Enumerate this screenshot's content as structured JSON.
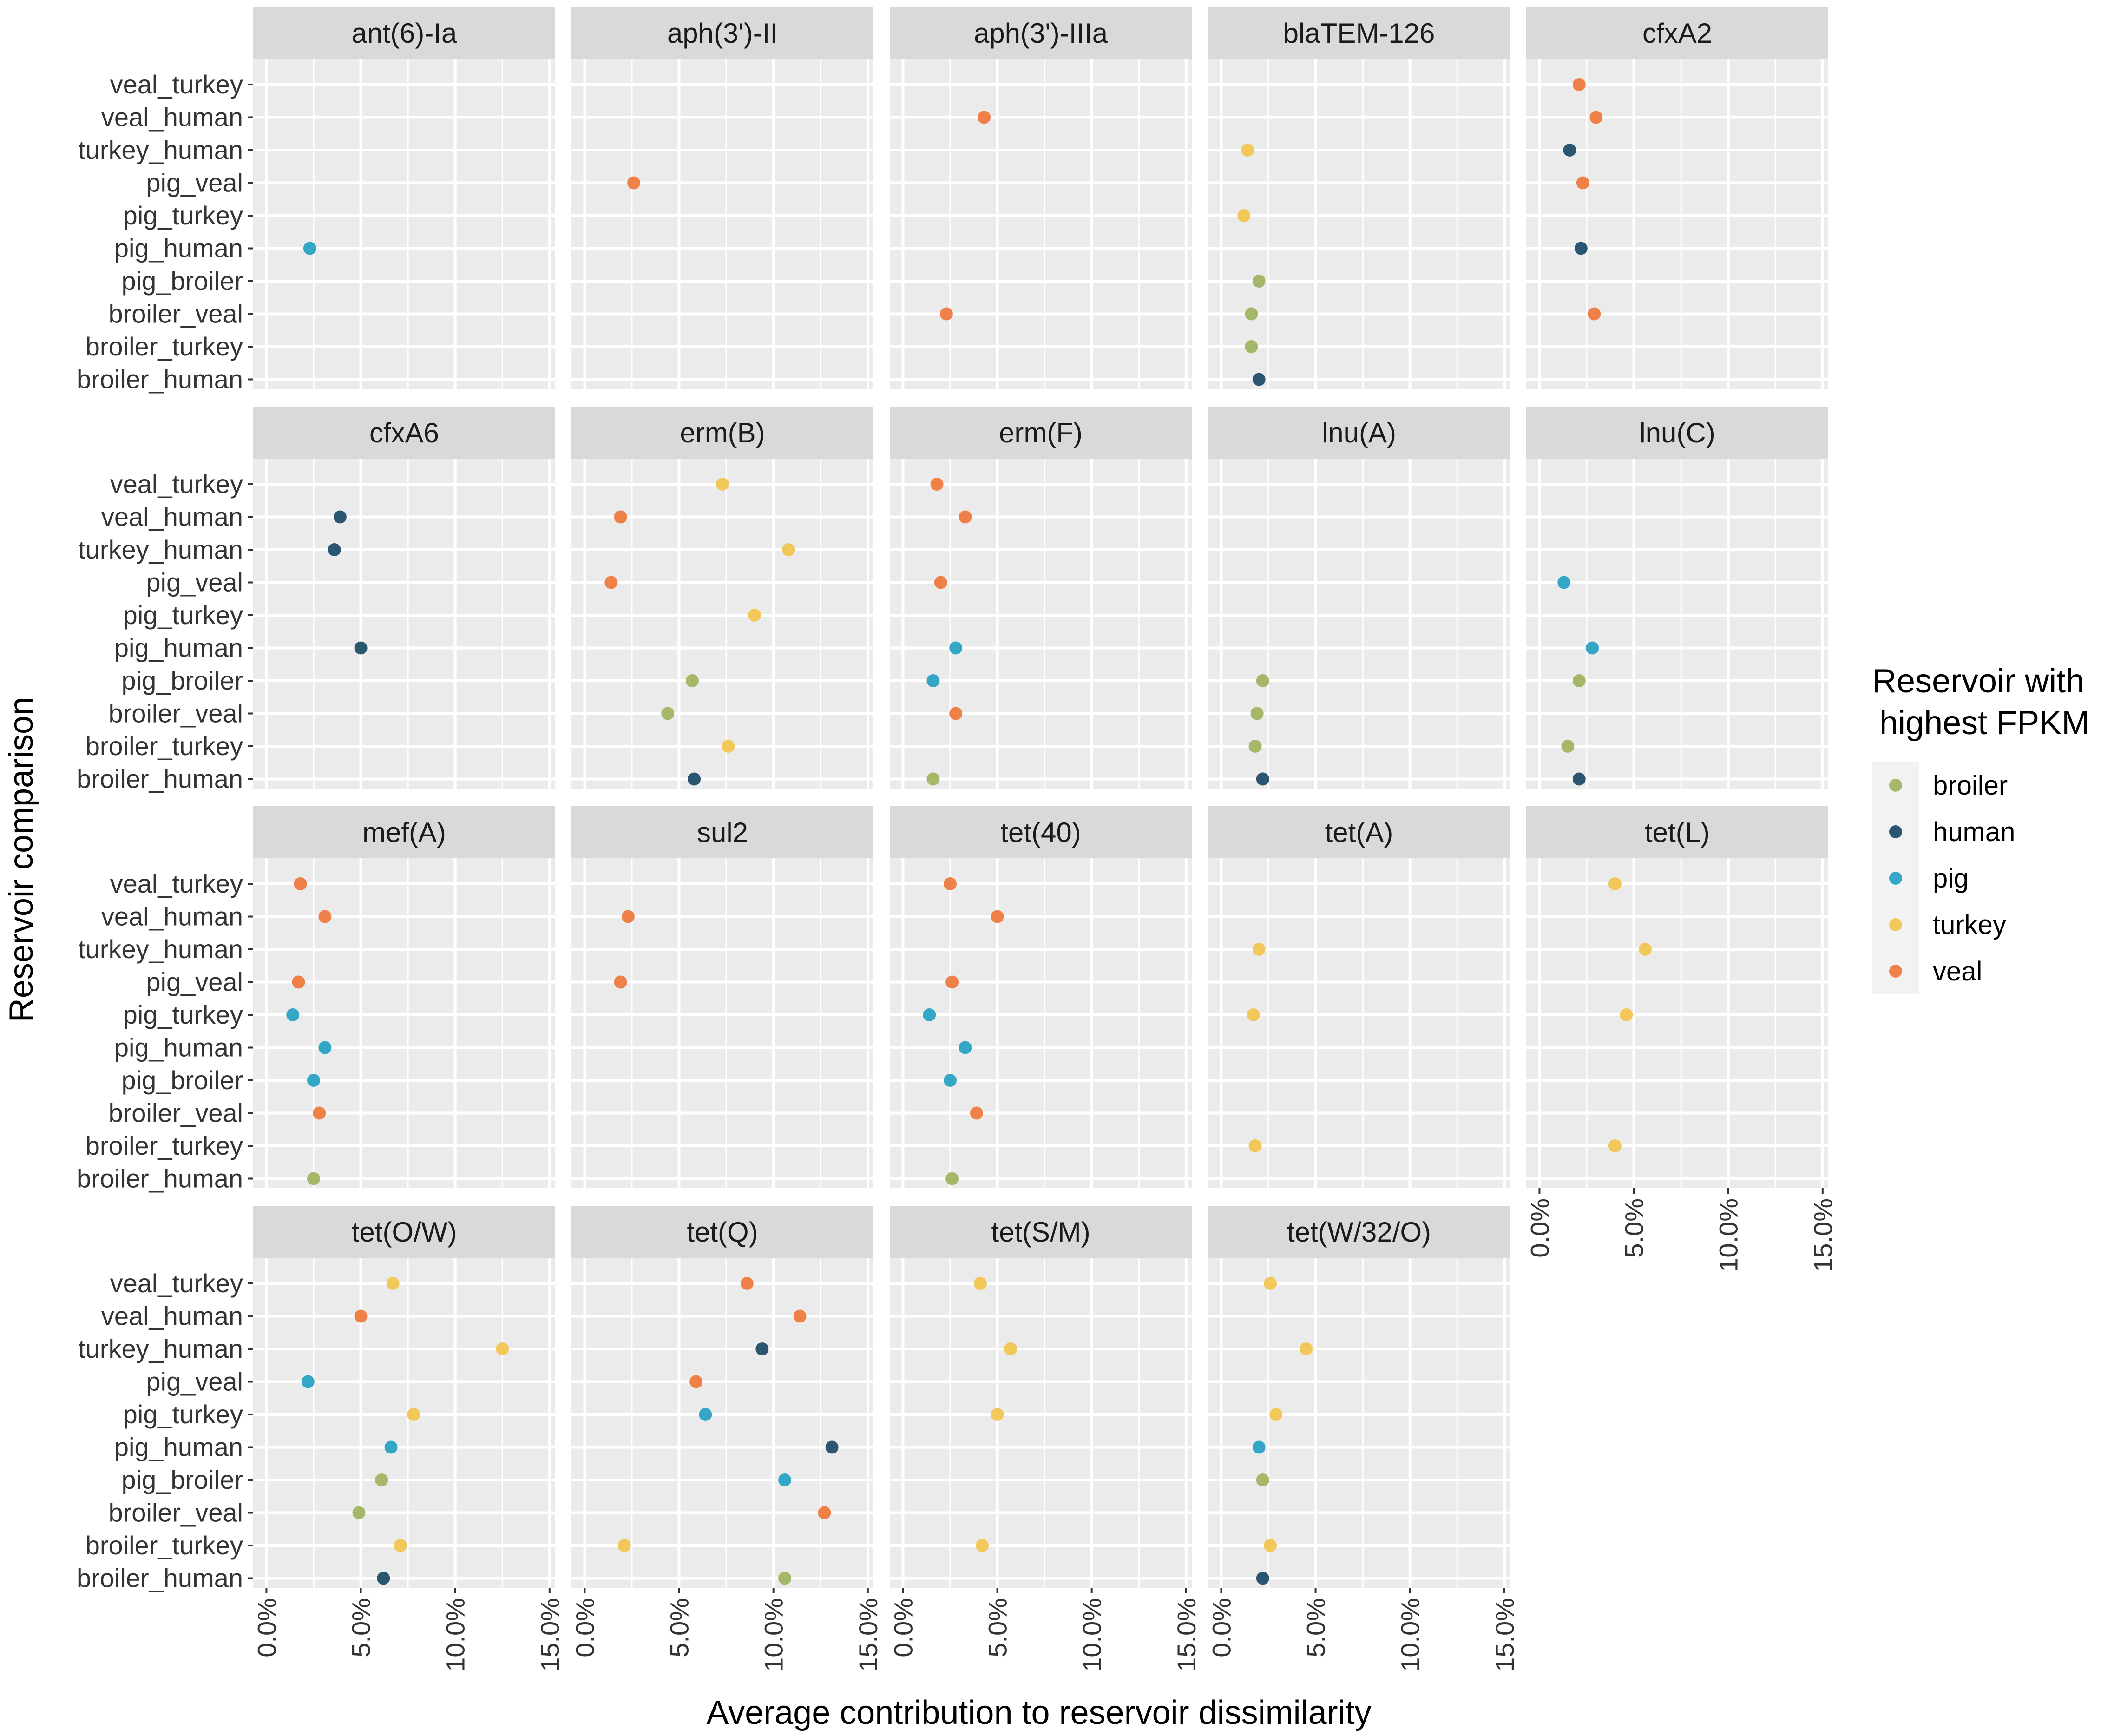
{
  "chart_data": {
    "type": "scatter",
    "xlabel": "Average contribution to reservoir dissimilarity",
    "ylabel": "Reservoir comparison",
    "xlim": [
      -0.7,
      15.3
    ],
    "xticks": [
      0,
      5,
      10,
      15
    ],
    "xtick_labels": [
      "0.0%",
      "5.0%",
      "10.0%",
      "15.0%"
    ],
    "y_categories": [
      "veal_turkey",
      "veal_human",
      "turkey_human",
      "pig_veal",
      "pig_turkey",
      "pig_human",
      "pig_broiler",
      "broiler_veal",
      "broiler_turkey",
      "broiler_human"
    ],
    "legend": {
      "title_line1": "Reservoir with",
      "title_line2": "highest FPKM",
      "entries": [
        {
          "name": "broiler",
          "color": "#a5b768"
        },
        {
          "name": "human",
          "color": "#2b5671"
        },
        {
          "name": "pig",
          "color": "#34a7c6"
        },
        {
          "name": "turkey",
          "color": "#f2c85b"
        },
        {
          "name": "veal",
          "color": "#ef8048"
        }
      ]
    },
    "panels": [
      {
        "title": "ant(6)-Ia",
        "points": [
          {
            "y": "pig_human",
            "x": 2.3,
            "reservoir": "pig"
          }
        ]
      },
      {
        "title": "aph(3')-II",
        "points": [
          {
            "y": "pig_veal",
            "x": 2.6,
            "reservoir": "veal"
          }
        ]
      },
      {
        "title": "aph(3')-IIIa",
        "points": [
          {
            "y": "veal_human",
            "x": 4.3,
            "reservoir": "veal"
          },
          {
            "y": "broiler_veal",
            "x": 2.3,
            "reservoir": "veal"
          }
        ]
      },
      {
        "title": "blaTEM-126",
        "points": [
          {
            "y": "turkey_human",
            "x": 1.4,
            "reservoir": "turkey"
          },
          {
            "y": "pig_turkey",
            "x": 1.2,
            "reservoir": "turkey"
          },
          {
            "y": "pig_broiler",
            "x": 2.0,
            "reservoir": "broiler"
          },
          {
            "y": "broiler_veal",
            "x": 1.6,
            "reservoir": "broiler"
          },
          {
            "y": "broiler_turkey",
            "x": 1.6,
            "reservoir": "broiler"
          },
          {
            "y": "broiler_human",
            "x": 2.0,
            "reservoir": "human"
          }
        ]
      },
      {
        "title": "cfxA2",
        "points": [
          {
            "y": "veal_turkey",
            "x": 2.1,
            "reservoir": "veal"
          },
          {
            "y": "veal_human",
            "x": 3.0,
            "reservoir": "veal"
          },
          {
            "y": "turkey_human",
            "x": 1.6,
            "reservoir": "human"
          },
          {
            "y": "pig_veal",
            "x": 2.3,
            "reservoir": "veal"
          },
          {
            "y": "pig_human",
            "x": 2.2,
            "reservoir": "human"
          },
          {
            "y": "broiler_veal",
            "x": 2.9,
            "reservoir": "veal"
          }
        ]
      },
      {
        "title": "cfxA6",
        "points": [
          {
            "y": "veal_human",
            "x": 3.9,
            "reservoir": "human"
          },
          {
            "y": "turkey_human",
            "x": 3.6,
            "reservoir": "human"
          },
          {
            "y": "pig_human",
            "x": 5.0,
            "reservoir": "human"
          }
        ]
      },
      {
        "title": "erm(B)",
        "points": [
          {
            "y": "veal_turkey",
            "x": 7.3,
            "reservoir": "turkey"
          },
          {
            "y": "veal_human",
            "x": 1.9,
            "reservoir": "veal"
          },
          {
            "y": "turkey_human",
            "x": 10.8,
            "reservoir": "turkey"
          },
          {
            "y": "pig_veal",
            "x": 1.4,
            "reservoir": "veal"
          },
          {
            "y": "pig_turkey",
            "x": 9.0,
            "reservoir": "turkey"
          },
          {
            "y": "pig_broiler",
            "x": 5.7,
            "reservoir": "broiler"
          },
          {
            "y": "broiler_veal",
            "x": 4.4,
            "reservoir": "broiler"
          },
          {
            "y": "broiler_turkey",
            "x": 7.6,
            "reservoir": "turkey"
          },
          {
            "y": "broiler_human",
            "x": 5.8,
            "reservoir": "human"
          }
        ]
      },
      {
        "title": "erm(F)",
        "points": [
          {
            "y": "veal_turkey",
            "x": 1.8,
            "reservoir": "veal"
          },
          {
            "y": "veal_human",
            "x": 3.3,
            "reservoir": "veal"
          },
          {
            "y": "pig_veal",
            "x": 2.0,
            "reservoir": "veal"
          },
          {
            "y": "pig_human",
            "x": 2.8,
            "reservoir": "pig"
          },
          {
            "y": "pig_broiler",
            "x": 1.6,
            "reservoir": "pig"
          },
          {
            "y": "broiler_veal",
            "x": 2.8,
            "reservoir": "veal"
          },
          {
            "y": "broiler_human",
            "x": 1.6,
            "reservoir": "broiler"
          }
        ]
      },
      {
        "title": "lnu(A)",
        "points": [
          {
            "y": "pig_broiler",
            "x": 2.2,
            "reservoir": "broiler"
          },
          {
            "y": "broiler_veal",
            "x": 1.9,
            "reservoir": "broiler"
          },
          {
            "y": "broiler_turkey",
            "x": 1.8,
            "reservoir": "broiler"
          },
          {
            "y": "broiler_human",
            "x": 2.2,
            "reservoir": "human"
          }
        ]
      },
      {
        "title": "lnu(C)",
        "points": [
          {
            "y": "pig_veal",
            "x": 1.3,
            "reservoir": "pig"
          },
          {
            "y": "pig_human",
            "x": 2.8,
            "reservoir": "pig"
          },
          {
            "y": "pig_broiler",
            "x": 2.1,
            "reservoir": "broiler"
          },
          {
            "y": "broiler_turkey",
            "x": 1.5,
            "reservoir": "broiler"
          },
          {
            "y": "broiler_human",
            "x": 2.1,
            "reservoir": "human"
          }
        ]
      },
      {
        "title": "mef(A)",
        "points": [
          {
            "y": "veal_turkey",
            "x": 1.8,
            "reservoir": "veal"
          },
          {
            "y": "veal_human",
            "x": 3.1,
            "reservoir": "veal"
          },
          {
            "y": "pig_veal",
            "x": 1.7,
            "reservoir": "veal"
          },
          {
            "y": "pig_turkey",
            "x": 1.4,
            "reservoir": "pig"
          },
          {
            "y": "pig_human",
            "x": 3.1,
            "reservoir": "pig"
          },
          {
            "y": "pig_broiler",
            "x": 2.5,
            "reservoir": "pig"
          },
          {
            "y": "broiler_veal",
            "x": 2.8,
            "reservoir": "veal"
          },
          {
            "y": "broiler_human",
            "x": 2.5,
            "reservoir": "broiler"
          }
        ]
      },
      {
        "title": "sul2",
        "points": [
          {
            "y": "veal_human",
            "x": 2.3,
            "reservoir": "veal"
          },
          {
            "y": "pig_veal",
            "x": 1.9,
            "reservoir": "veal"
          }
        ]
      },
      {
        "title": "tet(40)",
        "points": [
          {
            "y": "veal_turkey",
            "x": 2.5,
            "reservoir": "veal"
          },
          {
            "y": "veal_human",
            "x": 5.0,
            "reservoir": "veal"
          },
          {
            "y": "pig_veal",
            "x": 2.6,
            "reservoir": "veal"
          },
          {
            "y": "pig_turkey",
            "x": 1.4,
            "reservoir": "pig"
          },
          {
            "y": "pig_human",
            "x": 3.3,
            "reservoir": "pig"
          },
          {
            "y": "pig_broiler",
            "x": 2.5,
            "reservoir": "pig"
          },
          {
            "y": "broiler_veal",
            "x": 3.9,
            "reservoir": "veal"
          },
          {
            "y": "broiler_human",
            "x": 2.6,
            "reservoir": "broiler"
          }
        ]
      },
      {
        "title": "tet(A)",
        "points": [
          {
            "y": "turkey_human",
            "x": 2.0,
            "reservoir": "turkey"
          },
          {
            "y": "pig_turkey",
            "x": 1.7,
            "reservoir": "turkey"
          },
          {
            "y": "broiler_turkey",
            "x": 1.8,
            "reservoir": "turkey"
          }
        ]
      },
      {
        "title": "tet(L)",
        "points": [
          {
            "y": "veal_turkey",
            "x": 4.0,
            "reservoir": "turkey"
          },
          {
            "y": "turkey_human",
            "x": 5.6,
            "reservoir": "turkey"
          },
          {
            "y": "pig_turkey",
            "x": 4.6,
            "reservoir": "turkey"
          },
          {
            "y": "broiler_turkey",
            "x": 4.0,
            "reservoir": "turkey"
          }
        ]
      },
      {
        "title": "tet(O/W)",
        "points": [
          {
            "y": "veal_turkey",
            "x": 6.7,
            "reservoir": "turkey"
          },
          {
            "y": "veal_human",
            "x": 5.0,
            "reservoir": "veal"
          },
          {
            "y": "turkey_human",
            "x": 12.5,
            "reservoir": "turkey"
          },
          {
            "y": "pig_veal",
            "x": 2.2,
            "reservoir": "pig"
          },
          {
            "y": "pig_turkey",
            "x": 7.8,
            "reservoir": "turkey"
          },
          {
            "y": "pig_human",
            "x": 6.6,
            "reservoir": "pig"
          },
          {
            "y": "pig_broiler",
            "x": 6.1,
            "reservoir": "broiler"
          },
          {
            "y": "broiler_veal",
            "x": 4.9,
            "reservoir": "broiler"
          },
          {
            "y": "broiler_turkey",
            "x": 7.1,
            "reservoir": "turkey"
          },
          {
            "y": "broiler_human",
            "x": 6.2,
            "reservoir": "human"
          }
        ]
      },
      {
        "title": "tet(Q)",
        "points": [
          {
            "y": "veal_turkey",
            "x": 8.6,
            "reservoir": "veal"
          },
          {
            "y": "veal_human",
            "x": 11.4,
            "reservoir": "veal"
          },
          {
            "y": "turkey_human",
            "x": 9.4,
            "reservoir": "human"
          },
          {
            "y": "pig_veal",
            "x": 5.9,
            "reservoir": "veal"
          },
          {
            "y": "pig_turkey",
            "x": 6.4,
            "reservoir": "pig"
          },
          {
            "y": "pig_human",
            "x": 13.1,
            "reservoir": "human"
          },
          {
            "y": "pig_broiler",
            "x": 10.6,
            "reservoir": "pig"
          },
          {
            "y": "broiler_veal",
            "x": 12.7,
            "reservoir": "veal"
          },
          {
            "y": "broiler_turkey",
            "x": 2.1,
            "reservoir": "turkey"
          },
          {
            "y": "broiler_human",
            "x": 10.6,
            "reservoir": "broiler"
          }
        ]
      },
      {
        "title": "tet(S/M)",
        "points": [
          {
            "y": "veal_turkey",
            "x": 4.1,
            "reservoir": "turkey"
          },
          {
            "y": "turkey_human",
            "x": 5.7,
            "reservoir": "turkey"
          },
          {
            "y": "pig_turkey",
            "x": 5.0,
            "reservoir": "turkey"
          },
          {
            "y": "broiler_turkey",
            "x": 4.2,
            "reservoir": "turkey"
          }
        ]
      },
      {
        "title": "tet(W/32/O)",
        "points": [
          {
            "y": "veal_turkey",
            "x": 2.6,
            "reservoir": "turkey"
          },
          {
            "y": "turkey_human",
            "x": 4.5,
            "reservoir": "turkey"
          },
          {
            "y": "pig_turkey",
            "x": 2.9,
            "reservoir": "turkey"
          },
          {
            "y": "pig_human",
            "x": 2.0,
            "reservoir": "pig"
          },
          {
            "y": "pig_broiler",
            "x": 2.2,
            "reservoir": "broiler"
          },
          {
            "y": "broiler_turkey",
            "x": 2.6,
            "reservoir": "turkey"
          },
          {
            "y": "broiler_human",
            "x": 2.2,
            "reservoir": "human"
          }
        ]
      }
    ]
  }
}
